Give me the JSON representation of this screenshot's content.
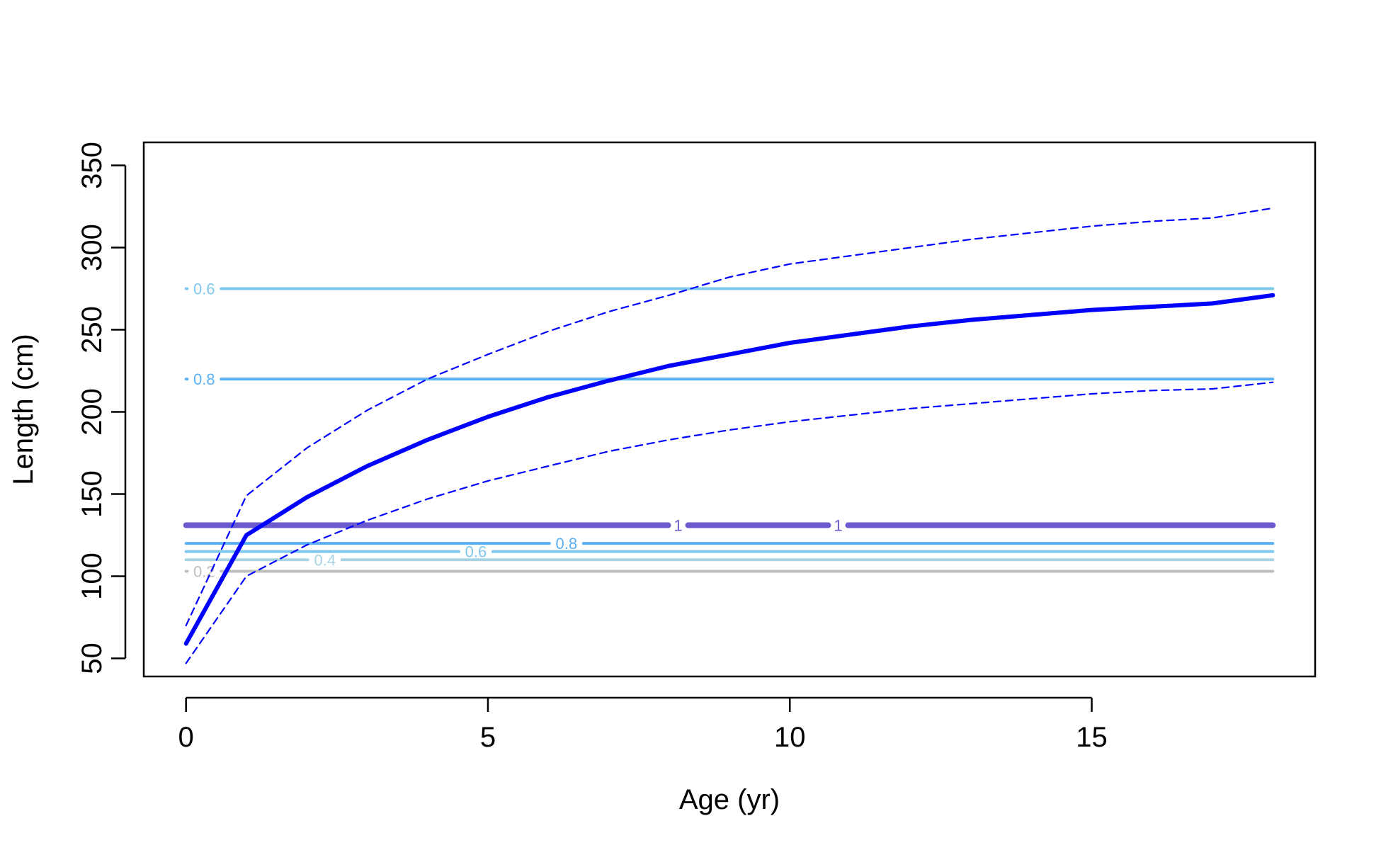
{
  "chart_data": {
    "type": "line",
    "xlabel": "Age (yr)",
    "ylabel": "Length (cm)",
    "xlim": [
      -0.7,
      18.7
    ],
    "ylim": [
      39,
      364
    ],
    "x_ticks": [
      0,
      5,
      10,
      15
    ],
    "y_ticks": [
      50,
      100,
      150,
      200,
      250,
      300,
      350
    ],
    "grid": false,
    "legend": "none",
    "series": [
      {
        "style": "solid",
        "color": "#0000ff",
        "x": [
          0,
          1,
          2,
          3,
          4,
          5,
          6,
          7,
          8,
          9,
          10,
          11,
          12,
          13,
          14,
          15,
          16,
          17,
          18
        ],
        "y": [
          59,
          125,
          148,
          167,
          183,
          197,
          209,
          219,
          228,
          235,
          242,
          247,
          252,
          256,
          259,
          262,
          264,
          266,
          271
        ]
      },
      {
        "style": "dashed",
        "color": "#0000ff",
        "x": [
          0,
          1,
          2,
          3,
          4,
          5,
          6,
          7,
          8,
          9,
          10,
          11,
          12,
          13,
          14,
          15,
          16,
          17,
          18
        ],
        "y": [
          70,
          149,
          178,
          201,
          220,
          235,
          249,
          261,
          271,
          282,
          290,
          295,
          300,
          305,
          309,
          313,
          316,
          318,
          324
        ]
      },
      {
        "style": "dashed",
        "color": "#0000ff",
        "x": [
          0,
          1,
          2,
          3,
          4,
          5,
          6,
          7,
          8,
          9,
          10,
          11,
          12,
          13,
          14,
          15,
          16,
          17,
          18
        ],
        "y": [
          47,
          100,
          119,
          134,
          147,
          158,
          167,
          176,
          183,
          189,
          194,
          198,
          202,
          205,
          208,
          211,
          213,
          214,
          218
        ]
      }
    ],
    "contours": [
      {
        "label": "0.6",
        "y": 275,
        "color": "#7ec8ee",
        "width": 4,
        "label_x": [
          0.3
        ]
      },
      {
        "label": "0.8",
        "y": 220,
        "color": "#5ab1f5",
        "width": 4,
        "label_x": [
          0.3
        ]
      },
      {
        "label": "1",
        "y": 131,
        "color": "#6a5acd",
        "width": 8,
        "label_x": [
          8.15,
          10.8
        ]
      },
      {
        "label": "0.8",
        "y": 120,
        "color": "#5ab1f5",
        "width": 4,
        "label_x": [
          6.3
        ]
      },
      {
        "label": "0.6",
        "y": 115,
        "color": "#7ec8ee",
        "width": 4,
        "label_x": [
          4.8
        ]
      },
      {
        "label": "0.4",
        "y": 110,
        "color": "#a8d4e6",
        "width": 4,
        "label_x": [
          2.3
        ]
      },
      {
        "label": "0.2",
        "y": 103,
        "color": "#bebebe",
        "width": 4,
        "label_x": [
          0.3
        ]
      }
    ]
  }
}
